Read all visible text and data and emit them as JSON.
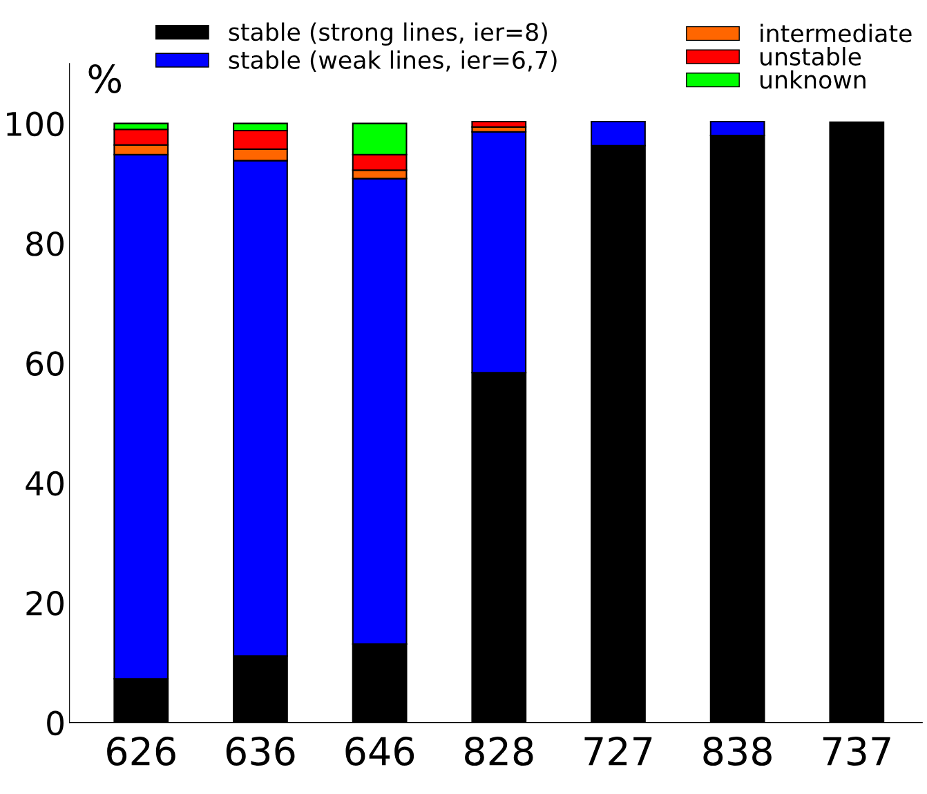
{
  "chart_data": {
    "type": "bar",
    "stacked": true,
    "ylabel": "%",
    "categories": [
      "626",
      "636",
      "646",
      "828",
      "727",
      "838",
      "737"
    ],
    "series": [
      {
        "name": "stable (strong lines, ier=8)",
        "color": "#000000",
        "values": [
          7.3,
          11.1,
          13.1,
          58.4,
          96.3,
          98.0,
          100.2
        ]
      },
      {
        "name": "stable (weak lines, ier=6,7)",
        "color": "#0000ff",
        "values": [
          87.5,
          82.7,
          77.7,
          40.2,
          4.0,
          2.3,
          null
        ]
      },
      {
        "name": "intermediate",
        "color": "#ff6600",
        "values": [
          1.6,
          1.9,
          1.4,
          0.8,
          null,
          null,
          null
        ]
      },
      {
        "name": "unstable",
        "color": "#ff0000",
        "values": [
          2.6,
          3.1,
          2.6,
          0.9,
          null,
          null,
          null
        ]
      },
      {
        "name": "unknown",
        "color": "#00ff00",
        "values": [
          1.0,
          1.2,
          5.2,
          null,
          null,
          null,
          null
        ]
      }
    ],
    "ylim": [
      0,
      110
    ],
    "yticks": [
      0,
      20,
      40,
      60,
      80,
      100
    ],
    "grid": false,
    "legend": "top"
  }
}
